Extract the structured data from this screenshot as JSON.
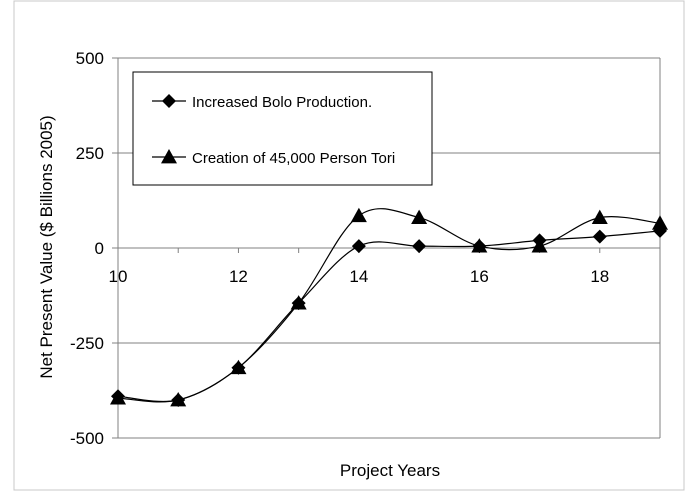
{
  "chart_data": {
    "type": "line",
    "title": "",
    "xlabel": "Project Years",
    "ylabel": "Net Present Value ($ Billions 2005)",
    "xlim": [
      10,
      19
    ],
    "ylim": [
      -500,
      500
    ],
    "x_ticks": [
      10,
      12,
      14,
      16,
      18
    ],
    "y_ticks": [
      500,
      250,
      0,
      -250,
      -500
    ],
    "grid": true,
    "smoothed": true,
    "legend_position": "top-left",
    "x": [
      10,
      11,
      12,
      13,
      14,
      15,
      16,
      17,
      18,
      19
    ],
    "series": [
      {
        "name": "Increased Bolo Production.",
        "marker": "diamond",
        "values": [
          -390,
          -400,
          -315,
          -145,
          5,
          5,
          5,
          20,
          30,
          45
        ]
      },
      {
        "name": "Creation of 45,000 Person Tori",
        "marker": "triangle",
        "values": [
          -395,
          -400,
          -315,
          -145,
          85,
          80,
          5,
          5,
          80,
          65
        ]
      }
    ],
    "colors": {
      "line": "#000000",
      "grid": "#808080",
      "axis": "#808080",
      "border": "#c8c8c8"
    }
  }
}
